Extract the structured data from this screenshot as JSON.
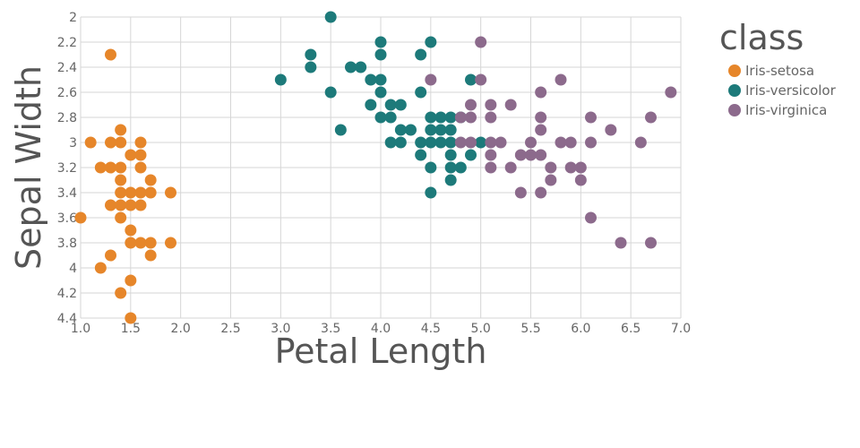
{
  "chart_data": {
    "type": "scatter",
    "xlabel": "Petal Length",
    "ylabel": "Sepal Width",
    "xlim": [
      1.0,
      7.0
    ],
    "ylim": [
      2.0,
      4.4
    ],
    "y_reversed": true,
    "x_ticks": [
      "1.0",
      "1.5",
      "2.0",
      "2.5",
      "3.0",
      "3.5",
      "4.0",
      "4.5",
      "5.0",
      "5.5",
      "6.0",
      "6.5",
      "7.0"
    ],
    "y_ticks": [
      "2",
      "2.2",
      "2.4",
      "2.6",
      "2.8",
      "3",
      "3.2",
      "3.4",
      "3.6",
      "3.8",
      "4",
      "4.2",
      "4.4"
    ],
    "grid": true,
    "legend": {
      "title": "class",
      "placement": "right"
    },
    "series": [
      {
        "name": "Iris-setosa",
        "color": "#e6862a",
        "points": [
          [
            1.3,
            2.3
          ],
          [
            1.1,
            3.0
          ],
          [
            1.3,
            3.0
          ],
          [
            1.4,
            3.0
          ],
          [
            1.6,
            3.0
          ],
          [
            1.4,
            2.9
          ],
          [
            1.2,
            3.2
          ],
          [
            1.3,
            3.2
          ],
          [
            1.4,
            3.2
          ],
          [
            1.6,
            3.2
          ],
          [
            1.4,
            3.3
          ],
          [
            1.5,
            3.1
          ],
          [
            1.6,
            3.1
          ],
          [
            1.7,
            3.3
          ],
          [
            1.4,
            3.4
          ],
          [
            1.5,
            3.4
          ],
          [
            1.6,
            3.4
          ],
          [
            1.7,
            3.4
          ],
          [
            1.9,
            3.4
          ],
          [
            1.3,
            3.5
          ],
          [
            1.4,
            3.5
          ],
          [
            1.5,
            3.5
          ],
          [
            1.6,
            3.5
          ],
          [
            1.0,
            3.6
          ],
          [
            1.4,
            3.6
          ],
          [
            1.5,
            3.7
          ],
          [
            1.5,
            3.8
          ],
          [
            1.6,
            3.8
          ],
          [
            1.7,
            3.8
          ],
          [
            1.9,
            3.8
          ],
          [
            1.3,
            3.9
          ],
          [
            1.7,
            3.9
          ],
          [
            1.2,
            4.0
          ],
          [
            1.5,
            4.1
          ],
          [
            1.4,
            4.2
          ],
          [
            1.5,
            4.4
          ]
        ]
      },
      {
        "name": "Iris-versicolor",
        "color": "#1d7a7a",
        "points": [
          [
            3.5,
            2.0
          ],
          [
            4.0,
            2.2
          ],
          [
            4.5,
            2.2
          ],
          [
            3.3,
            2.3
          ],
          [
            4.0,
            2.3
          ],
          [
            4.4,
            2.3
          ],
          [
            3.3,
            2.4
          ],
          [
            3.7,
            2.4
          ],
          [
            3.8,
            2.4
          ],
          [
            3.0,
            2.5
          ],
          [
            3.9,
            2.5
          ],
          [
            4.0,
            2.5
          ],
          [
            4.9,
            2.5
          ],
          [
            3.5,
            2.6
          ],
          [
            4.0,
            2.6
          ],
          [
            4.4,
            2.6
          ],
          [
            3.9,
            2.7
          ],
          [
            4.1,
            2.7
          ],
          [
            4.2,
            2.7
          ],
          [
            4.0,
            2.8
          ],
          [
            4.1,
            2.8
          ],
          [
            4.5,
            2.8
          ],
          [
            4.6,
            2.8
          ],
          [
            4.7,
            2.8
          ],
          [
            4.8,
            2.8
          ],
          [
            3.6,
            2.9
          ],
          [
            4.2,
            2.9
          ],
          [
            4.3,
            2.9
          ],
          [
            4.5,
            2.9
          ],
          [
            4.6,
            2.9
          ],
          [
            4.7,
            2.9
          ],
          [
            4.1,
            3.0
          ],
          [
            4.2,
            3.0
          ],
          [
            4.4,
            3.0
          ],
          [
            4.5,
            3.0
          ],
          [
            4.6,
            3.0
          ],
          [
            4.7,
            3.0
          ],
          [
            5.0,
            3.0
          ],
          [
            4.4,
            3.1
          ],
          [
            4.7,
            3.1
          ],
          [
            4.9,
            3.1
          ],
          [
            4.5,
            3.2
          ],
          [
            4.7,
            3.2
          ],
          [
            4.8,
            3.2
          ],
          [
            4.7,
            3.3
          ],
          [
            4.5,
            3.4
          ]
        ]
      },
      {
        "name": "Iris-virginica",
        "color": "#8c6a8c",
        "points": [
          [
            5.0,
            2.2
          ],
          [
            4.5,
            2.5
          ],
          [
            5.0,
            2.5
          ],
          [
            5.8,
            2.5
          ],
          [
            5.6,
            2.6
          ],
          [
            6.9,
            2.6
          ],
          [
            4.9,
            2.7
          ],
          [
            5.1,
            2.7
          ],
          [
            5.3,
            2.7
          ],
          [
            4.8,
            2.8
          ],
          [
            4.9,
            2.8
          ],
          [
            5.1,
            2.8
          ],
          [
            5.6,
            2.8
          ],
          [
            6.1,
            2.8
          ],
          [
            6.7,
            2.8
          ],
          [
            5.6,
            2.9
          ],
          [
            6.3,
            2.9
          ],
          [
            4.8,
            3.0
          ],
          [
            4.9,
            3.0
          ],
          [
            5.1,
            3.0
          ],
          [
            5.2,
            3.0
          ],
          [
            5.5,
            3.0
          ],
          [
            5.8,
            3.0
          ],
          [
            5.9,
            3.0
          ],
          [
            6.1,
            3.0
          ],
          [
            6.6,
            3.0
          ],
          [
            5.1,
            3.1
          ],
          [
            5.4,
            3.1
          ],
          [
            5.5,
            3.1
          ],
          [
            5.6,
            3.1
          ],
          [
            5.1,
            3.2
          ],
          [
            5.3,
            3.2
          ],
          [
            5.7,
            3.2
          ],
          [
            5.9,
            3.2
          ],
          [
            6.0,
            3.2
          ],
          [
            5.7,
            3.3
          ],
          [
            6.0,
            3.3
          ],
          [
            5.4,
            3.4
          ],
          [
            5.6,
            3.4
          ],
          [
            6.1,
            3.6
          ],
          [
            6.4,
            3.8
          ],
          [
            6.7,
            3.8
          ]
        ]
      }
    ]
  }
}
